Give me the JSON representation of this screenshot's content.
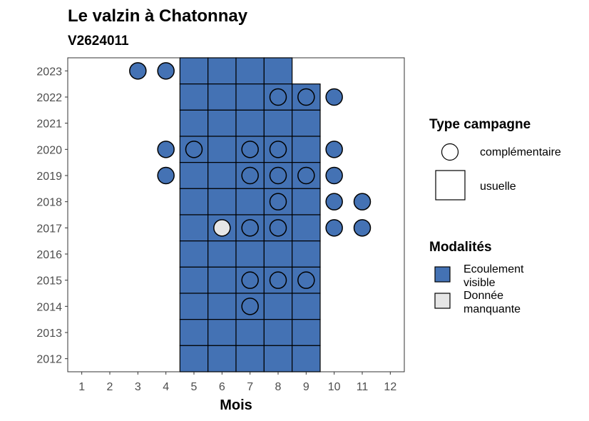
{
  "chart_data": {
    "type": "heatmap",
    "title": "Le valzin à Chatonnay",
    "subtitle": "V2624011",
    "xlabel": "Mois",
    "ylabel": "",
    "x": [
      1,
      2,
      3,
      4,
      5,
      6,
      7,
      8,
      9,
      10,
      11,
      12
    ],
    "y": [
      2012,
      2013,
      2014,
      2015,
      2016,
      2017,
      2018,
      2019,
      2020,
      2021,
      2022,
      2023
    ],
    "xlim": [
      0.5,
      12.5
    ],
    "ylim": [
      2011.5,
      2023.5
    ],
    "grid": false,
    "legend_position": "right",
    "colors": {
      "Ecoulement visible": "#4472b4",
      "Donnée manquante": "#e6e6e6"
    },
    "legend": {
      "type_title": "Type campagne",
      "type_items": [
        {
          "label": "complémentaire",
          "shape": "circle"
        },
        {
          "label": "usuelle",
          "shape": "square"
        }
      ],
      "mod_title": "Modalités",
      "mod_items": [
        {
          "lines": [
            "Ecoulement",
            "visible"
          ],
          "key": "Ecoulement visible"
        },
        {
          "lines": [
            "Donnée",
            "manquante"
          ],
          "key": "Donnée manquante"
        }
      ]
    },
    "usuelle": [
      {
        "year": 2023,
        "months": [
          5,
          6,
          7,
          8
        ],
        "modalite": "Ecoulement visible"
      },
      {
        "year": 2022,
        "months": [
          5,
          6,
          7,
          8,
          9
        ],
        "modalite": "Ecoulement visible"
      },
      {
        "year": 2021,
        "months": [
          5,
          6,
          7,
          8,
          9
        ],
        "modalite": "Ecoulement visible"
      },
      {
        "year": 2020,
        "months": [
          5,
          6,
          7,
          8,
          9
        ],
        "modalite": "Ecoulement visible"
      },
      {
        "year": 2019,
        "months": [
          5,
          6,
          7,
          8,
          9
        ],
        "modalite": "Ecoulement visible"
      },
      {
        "year": 2018,
        "months": [
          5,
          6,
          7,
          8,
          9
        ],
        "modalite": "Ecoulement visible"
      },
      {
        "year": 2017,
        "months": [
          5,
          6,
          7,
          8,
          9
        ],
        "modalite": "Ecoulement visible"
      },
      {
        "year": 2016,
        "months": [
          5,
          6,
          7,
          8,
          9
        ],
        "modalite": "Ecoulement visible"
      },
      {
        "year": 2015,
        "months": [
          5,
          6,
          7,
          8,
          9
        ],
        "modalite": "Ecoulement visible"
      },
      {
        "year": 2014,
        "months": [
          5,
          6,
          7,
          8,
          9
        ],
        "modalite": "Ecoulement visible"
      },
      {
        "year": 2013,
        "months": [
          5,
          6,
          7,
          8,
          9
        ],
        "modalite": "Ecoulement visible"
      },
      {
        "year": 2012,
        "months": [
          5,
          6,
          7,
          8,
          9
        ],
        "modalite": "Ecoulement visible"
      }
    ],
    "complementaire": [
      {
        "year": 2023,
        "month": 3,
        "modalite": "Ecoulement visible"
      },
      {
        "year": 2023,
        "month": 4,
        "modalite": "Ecoulement visible"
      },
      {
        "year": 2022,
        "month": 8,
        "modalite": "Ecoulement visible"
      },
      {
        "year": 2022,
        "month": 9,
        "modalite": "Ecoulement visible"
      },
      {
        "year": 2022,
        "month": 10,
        "modalite": "Ecoulement visible"
      },
      {
        "year": 2020,
        "month": 4,
        "modalite": "Ecoulement visible"
      },
      {
        "year": 2020,
        "month": 5,
        "modalite": "Ecoulement visible"
      },
      {
        "year": 2020,
        "month": 7,
        "modalite": "Ecoulement visible"
      },
      {
        "year": 2020,
        "month": 8,
        "modalite": "Ecoulement visible"
      },
      {
        "year": 2020,
        "month": 10,
        "modalite": "Ecoulement visible"
      },
      {
        "year": 2019,
        "month": 4,
        "modalite": "Ecoulement visible"
      },
      {
        "year": 2019,
        "month": 7,
        "modalite": "Ecoulement visible"
      },
      {
        "year": 2019,
        "month": 8,
        "modalite": "Ecoulement visible"
      },
      {
        "year": 2019,
        "month": 9,
        "modalite": "Ecoulement visible"
      },
      {
        "year": 2019,
        "month": 10,
        "modalite": "Ecoulement visible"
      },
      {
        "year": 2018,
        "month": 8,
        "modalite": "Ecoulement visible"
      },
      {
        "year": 2018,
        "month": 10,
        "modalite": "Ecoulement visible"
      },
      {
        "year": 2018,
        "month": 11,
        "modalite": "Ecoulement visible"
      },
      {
        "year": 2017,
        "month": 6,
        "modalite": "Donnée manquante"
      },
      {
        "year": 2017,
        "month": 7,
        "modalite": "Ecoulement visible"
      },
      {
        "year": 2017,
        "month": 8,
        "modalite": "Ecoulement visible"
      },
      {
        "year": 2017,
        "month": 10,
        "modalite": "Ecoulement visible"
      },
      {
        "year": 2017,
        "month": 11,
        "modalite": "Ecoulement visible"
      },
      {
        "year": 2015,
        "month": 7,
        "modalite": "Ecoulement visible"
      },
      {
        "year": 2015,
        "month": 8,
        "modalite": "Ecoulement visible"
      },
      {
        "year": 2015,
        "month": 9,
        "modalite": "Ecoulement visible"
      },
      {
        "year": 2014,
        "month": 7,
        "modalite": "Ecoulement visible"
      }
    ]
  }
}
